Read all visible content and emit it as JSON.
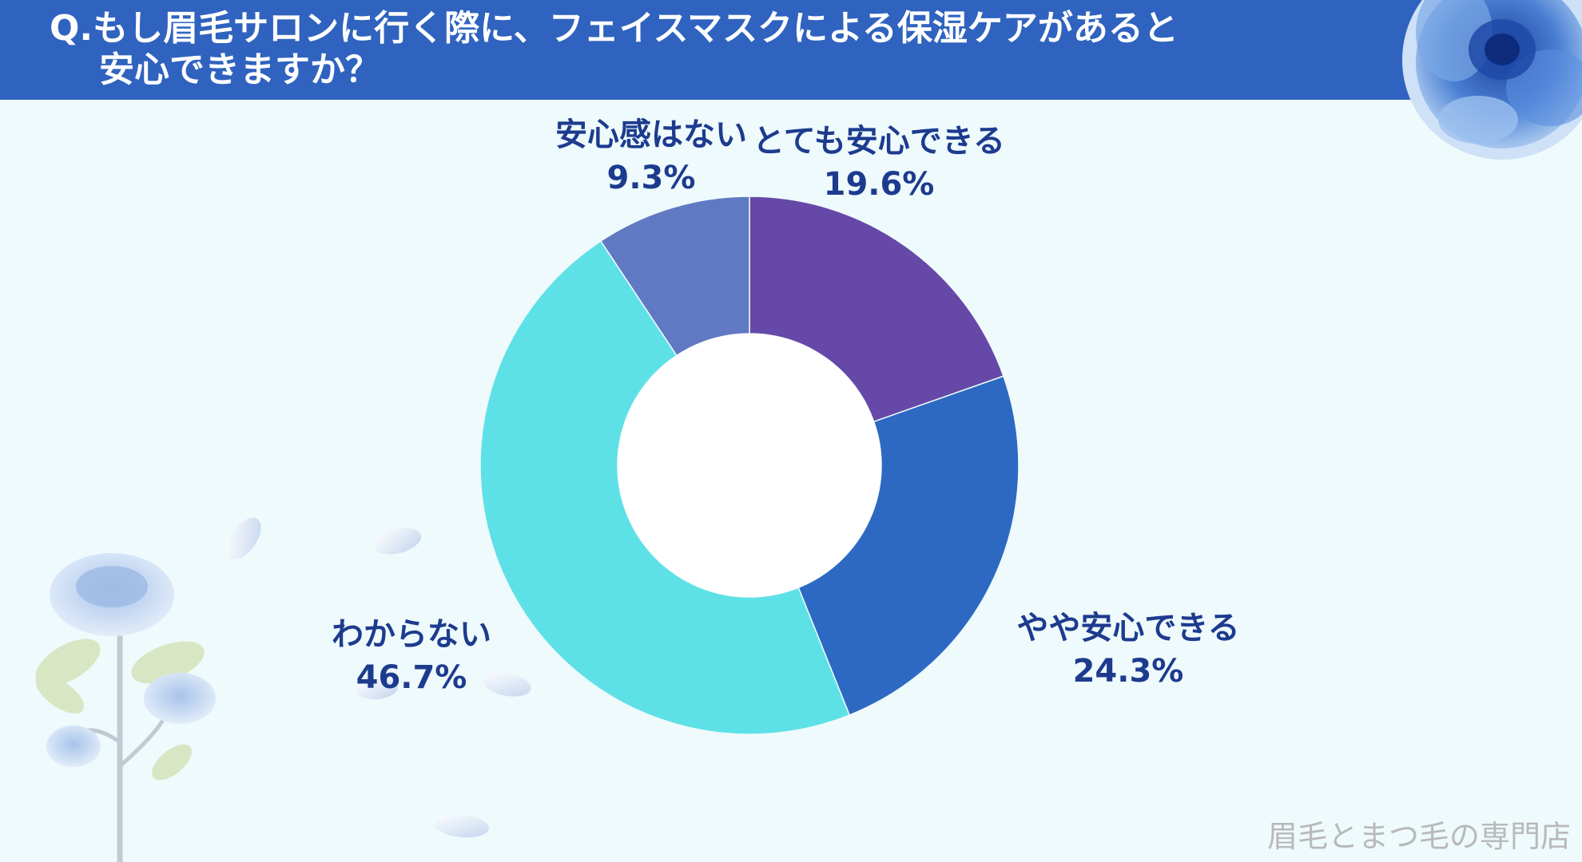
{
  "header": {
    "title_line1": "Q.もし眉毛サロンに行く際に、フェイスマスクによる保湿ケアがあると",
    "title_line2": "安心できますか？"
  },
  "chart_data": {
    "type": "pie",
    "donut": true,
    "title": "Q.もし眉毛サロンに行く際に、フェイスマスクによる保湿ケアがあると安心できますか？",
    "categories": [
      "とても安心できる",
      "やや安心できる",
      "わからない",
      "安心感はない"
    ],
    "values": [
      19.6,
      24.3,
      46.7,
      9.3
    ],
    "value_labels": [
      "19.6%",
      "24.3%",
      "46.7%",
      "9.3%"
    ],
    "colors": [
      "#6548a7",
      "#2d69c2",
      "#5ee1e6",
      "#6179c2"
    ],
    "legend": "none"
  },
  "footer": {
    "brand": "眉毛とまつ毛の専門店"
  },
  "decor": {
    "icons": [
      "blue-rose-icon",
      "rose-branch-icon",
      "petal-icon"
    ]
  }
}
